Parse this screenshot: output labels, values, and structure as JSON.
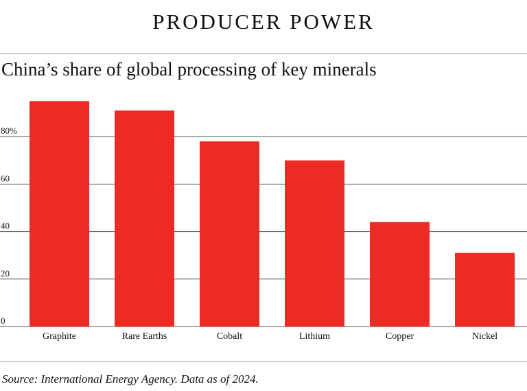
{
  "header": {
    "title": "PRODUCER POWER",
    "subtitle": "China’s share of global processing of key minerals"
  },
  "footer": {
    "source": "Source: International Energy Agency. Data as of 2024."
  },
  "colors": {
    "bar": "#ee2a24",
    "gridline": "#555555",
    "text": "#111111"
  },
  "chart_data": {
    "type": "bar",
    "title": "China’s share of global processing of key minerals",
    "xlabel": "",
    "ylabel": "",
    "categories": [
      "Graphite",
      "Rare Earths",
      "Cobalt",
      "Lithium",
      "Copper",
      "Nickel"
    ],
    "values": [
      95,
      91,
      78,
      70,
      44,
      31
    ],
    "ylim": [
      0,
      100
    ],
    "yticks": [
      0,
      20,
      40,
      60,
      80
    ],
    "ytick_labels": [
      "0",
      "20",
      "40",
      "60",
      "80%"
    ],
    "grid": true,
    "legend": "none"
  }
}
